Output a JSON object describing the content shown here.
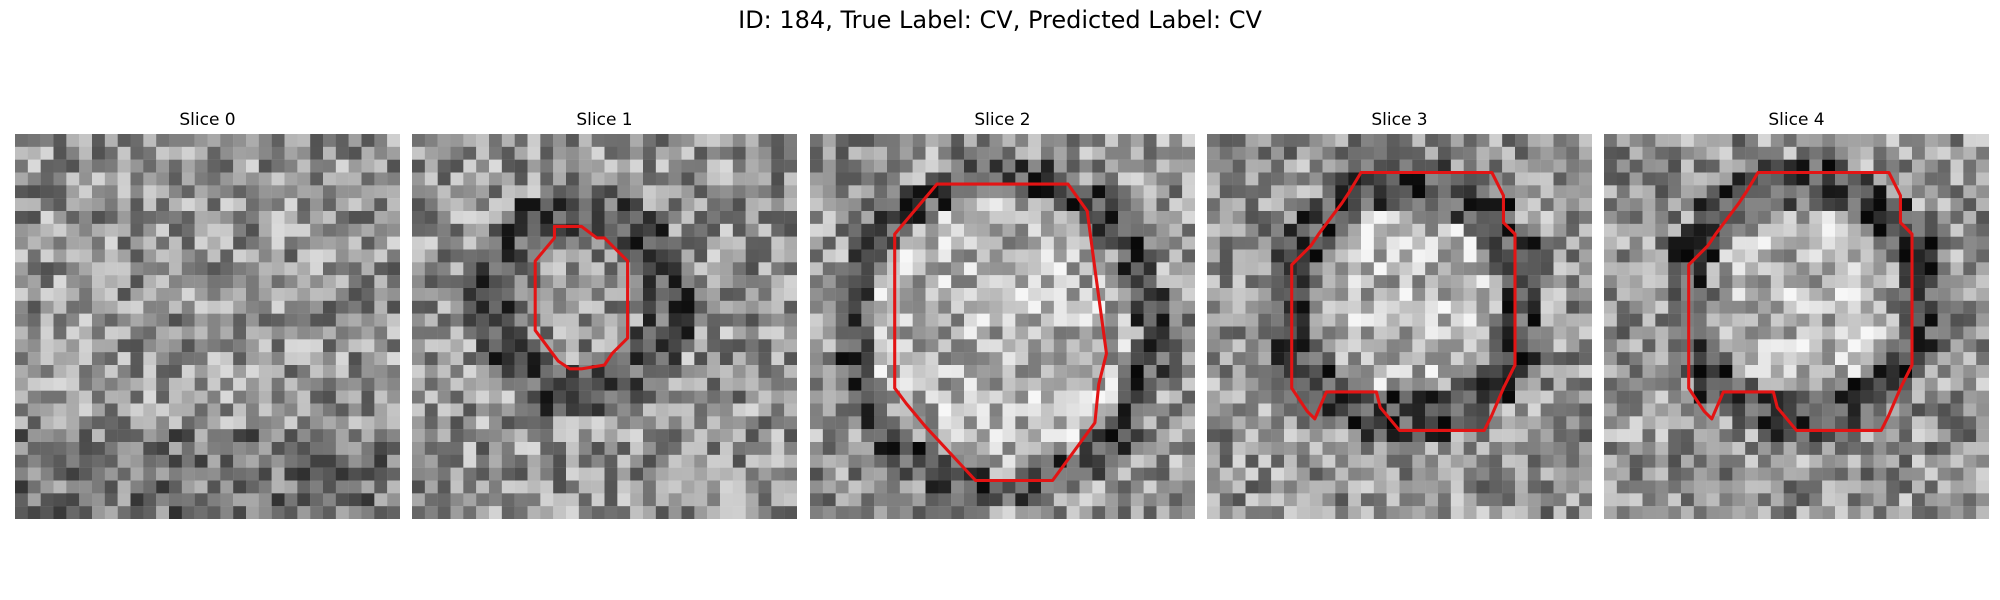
{
  "figure": {
    "title": "ID: 184, True Label: CV, Predicted Label: CV"
  },
  "contour_color": "#e31414",
  "slices": [
    {
      "label": "Slice 0",
      "has_contour": false
    },
    {
      "label": "Slice 1",
      "has_contour": true
    },
    {
      "label": "Slice 2",
      "has_contour": true
    },
    {
      "label": "Slice 3",
      "has_contour": true
    },
    {
      "label": "Slice 4",
      "has_contour": true
    }
  ]
}
